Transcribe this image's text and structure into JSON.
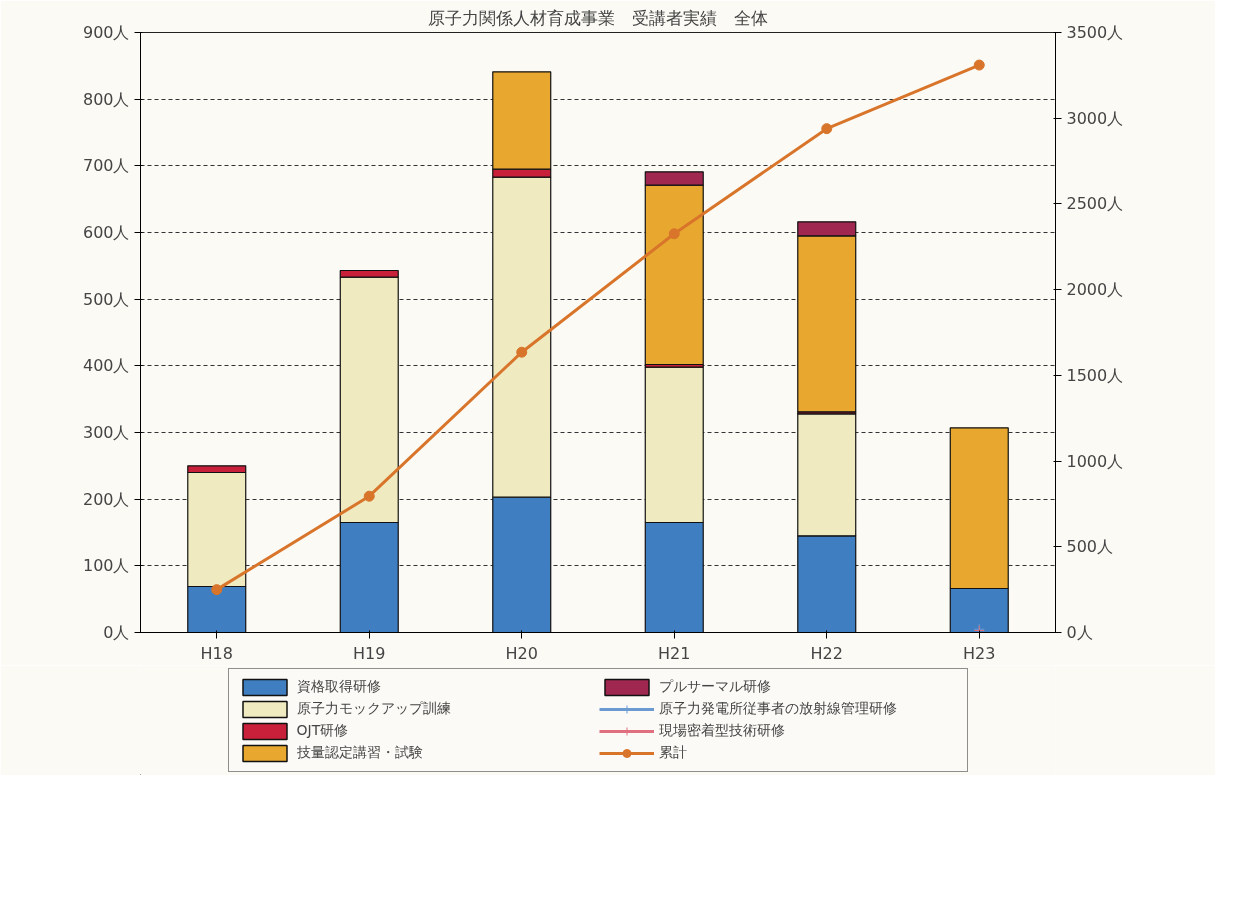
{
  "chart_data": {
    "type": "bar",
    "title": "原子力関係人材育成事業　受講者実績　全体",
    "categories": [
      "H18",
      "H19",
      "H20",
      "H21",
      "H22",
      "H23"
    ],
    "stacked": true,
    "series": [
      {
        "name": "資格取得研修",
        "color": "#3f7fc1",
        "values": [
          69,
          165,
          203,
          165,
          145,
          66
        ]
      },
      {
        "name": "原子力モックアップ訓練",
        "color": "#efeac0",
        "values": [
          171,
          368,
          480,
          233,
          183,
          null
        ]
      },
      {
        "name": "OJT研修",
        "color": "#c8203a",
        "values": [
          10,
          10,
          12,
          4,
          3,
          null
        ]
      },
      {
        "name": "技量認定講習・試験",
        "color": "#e8a830",
        "values": [
          null,
          null,
          146,
          269,
          264,
          241
        ]
      },
      {
        "name": "プルサーマル研修",
        "color": "#a02850",
        "values": [
          null,
          null,
          null,
          20,
          21,
          null
        ]
      },
      {
        "name": "原子力発電所従事者の放射線管理研修",
        "type": "line",
        "marker": "cross",
        "color": "#6a9ad0",
        "values": [
          null,
          null,
          null,
          null,
          null,
          5
        ]
      },
      {
        "name": "現場密着型技術研修",
        "type": "line",
        "marker": "cross",
        "color": "#e07080",
        "values": [
          null,
          null,
          null,
          null,
          null,
          3
        ]
      },
      {
        "name": "累計",
        "type": "line",
        "marker": "circle",
        "axis": "y2",
        "color": "#d8752a",
        "values": [
          250,
          795,
          1635,
          2326,
          2939,
          3310
        ]
      }
    ],
    "ylim": [
      0,
      900
    ],
    "yticks": [
      {
        "value": 0,
        "label": "0人"
      },
      {
        "value": 100,
        "label": "100人"
      },
      {
        "value": 200,
        "label": "200人"
      },
      {
        "value": 300,
        "label": "300人"
      },
      {
        "value": 400,
        "label": "400人"
      },
      {
        "value": 500,
        "label": "500人"
      },
      {
        "value": 600,
        "label": "600人"
      },
      {
        "value": 700,
        "label": "700人"
      },
      {
        "value": 800,
        "label": "800人"
      },
      {
        "value": 900,
        "label": "900人"
      }
    ],
    "y2lim": [
      0,
      3500
    ],
    "y2ticks": [
      {
        "value": 0,
        "label": "0人"
      },
      {
        "value": 500,
        "label": "500人"
      },
      {
        "value": 1000,
        "label": "1000人"
      },
      {
        "value": 1500,
        "label": "1500人"
      },
      {
        "value": 2000,
        "label": "2000人"
      },
      {
        "value": 2500,
        "label": "2500人"
      },
      {
        "value": 3000,
        "label": "3000人"
      },
      {
        "value": 3500,
        "label": "3500人"
      }
    ],
    "grid": "y",
    "legend": "bottom"
  }
}
